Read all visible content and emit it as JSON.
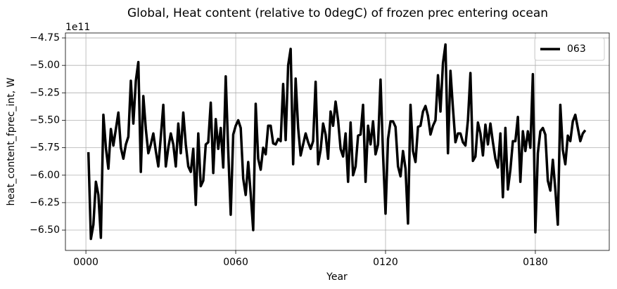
{
  "chart_data": {
    "type": "line",
    "title": "Global, Heat content (relative to 0degC) of frozen prec entering ocean",
    "xlabel": "Year",
    "ylabel": "heat_content_fprec_int, W",
    "offset_text": "1e11",
    "x": [
      1,
      2,
      3,
      4,
      5,
      6,
      7,
      8,
      9,
      10,
      11,
      12,
      13,
      14,
      15,
      16,
      17,
      18,
      19,
      20,
      21,
      22,
      23,
      24,
      25,
      26,
      27,
      28,
      29,
      30,
      31,
      32,
      33,
      34,
      35,
      36,
      37,
      38,
      39,
      40,
      41,
      42,
      43,
      44,
      45,
      46,
      47,
      48,
      49,
      50,
      51,
      52,
      53,
      54,
      55,
      56,
      57,
      58,
      59,
      60,
      61,
      62,
      63,
      64,
      65,
      66,
      67,
      68,
      69,
      70,
      71,
      72,
      73,
      74,
      75,
      76,
      77,
      78,
      79,
      80,
      81,
      82,
      83,
      84,
      85,
      86,
      87,
      88,
      89,
      90,
      91,
      92,
      93,
      94,
      95,
      96,
      97,
      98,
      99,
      100,
      101,
      102,
      103,
      104,
      105,
      106,
      107,
      108,
      109,
      110,
      111,
      112,
      113,
      114,
      115,
      116,
      117,
      118,
      119,
      120,
      121,
      122,
      123,
      124,
      125,
      126,
      127,
      128,
      129,
      130,
      131,
      132,
      133,
      134,
      135,
      136,
      137,
      138,
      139,
      140,
      141,
      142,
      143,
      144,
      145,
      146,
      147,
      148,
      149,
      150,
      151,
      152,
      153,
      154,
      155,
      156,
      157,
      158,
      159,
      160,
      161,
      162,
      163,
      164,
      165,
      166,
      167,
      168,
      169,
      170,
      171,
      172,
      173,
      174,
      175,
      176,
      177,
      178,
      179,
      180,
      181,
      182,
      183,
      184,
      185,
      186,
      187,
      188,
      189,
      190,
      191,
      192,
      193,
      194,
      195,
      196,
      197,
      198,
      199,
      200
    ],
    "series": [
      {
        "name": "063",
        "color": "#000000",
        "values": [
          -5.79,
          -6.58,
          -6.45,
          -6.06,
          -6.18,
          -6.57,
          -5.45,
          -5.75,
          -5.94,
          -5.58,
          -5.73,
          -5.58,
          -5.43,
          -5.75,
          -5.85,
          -5.72,
          -5.65,
          -5.14,
          -5.53,
          -5.14,
          -4.97,
          -5.97,
          -5.28,
          -5.58,
          -5.8,
          -5.72,
          -5.62,
          -5.78,
          -5.92,
          -5.65,
          -5.36,
          -5.92,
          -5.75,
          -5.62,
          -5.72,
          -5.92,
          -5.53,
          -5.8,
          -5.43,
          -5.72,
          -5.92,
          -5.97,
          -5.76,
          -6.27,
          -5.62,
          -6.1,
          -6.05,
          -5.72,
          -5.7,
          -5.34,
          -5.98,
          -5.49,
          -5.76,
          -5.57,
          -5.93,
          -5.1,
          -5.78,
          -6.36,
          -5.63,
          -5.55,
          -5.5,
          -5.57,
          -6.03,
          -6.18,
          -5.88,
          -6.17,
          -6.5,
          -5.35,
          -5.85,
          -5.95,
          -5.75,
          -5.81,
          -5.55,
          -5.55,
          -5.71,
          -5.72,
          -5.67,
          -5.69,
          -5.17,
          -5.68,
          -5.0,
          -4.85,
          -5.9,
          -5.12,
          -5.57,
          -5.82,
          -5.72,
          -5.62,
          -5.7,
          -5.76,
          -5.69,
          -5.15,
          -5.9,
          -5.77,
          -5.53,
          -5.63,
          -5.85,
          -5.42,
          -5.55,
          -5.33,
          -5.5,
          -5.76,
          -5.83,
          -5.62,
          -6.06,
          -5.52,
          -6.0,
          -5.92,
          -5.64,
          -5.63,
          -5.36,
          -6.06,
          -5.55,
          -5.72,
          -5.51,
          -5.81,
          -5.72,
          -5.13,
          -5.81,
          -6.35,
          -5.67,
          -5.51,
          -5.51,
          -5.56,
          -5.92,
          -6.01,
          -5.78,
          -5.94,
          -6.44,
          -5.36,
          -5.78,
          -5.88,
          -5.56,
          -5.55,
          -5.42,
          -5.37,
          -5.46,
          -5.63,
          -5.55,
          -5.5,
          -5.09,
          -5.42,
          -4.98,
          -4.81,
          -5.8,
          -5.05,
          -5.39,
          -5.7,
          -5.62,
          -5.62,
          -5.7,
          -5.73,
          -5.5,
          -5.07,
          -5.87,
          -5.83,
          -5.52,
          -5.62,
          -5.82,
          -5.54,
          -5.72,
          -5.53,
          -5.7,
          -5.85,
          -5.93,
          -5.62,
          -6.2,
          -5.57,
          -6.13,
          -5.95,
          -5.69,
          -5.69,
          -5.47,
          -6.06,
          -5.6,
          -5.78,
          -5.6,
          -5.75,
          -5.08,
          -6.52,
          -5.8,
          -5.6,
          -5.57,
          -5.63,
          -6.05,
          -6.14,
          -5.86,
          -6.13,
          -6.45,
          -5.36,
          -5.77,
          -5.9,
          -5.64,
          -5.69,
          -5.51,
          -5.45,
          -5.57,
          -5.69,
          -5.62,
          -5.59
        ]
      }
    ],
    "xlim": [
      -8.2,
      209.6
    ],
    "ylim": [
      -6.685,
      -4.705
    ],
    "xticks": [
      {
        "value": 0,
        "label": "0000"
      },
      {
        "value": 60,
        "label": "0060"
      },
      {
        "value": 120,
        "label": "0120"
      },
      {
        "value": 180,
        "label": "0180"
      }
    ],
    "yticks": [
      {
        "value": -6.5,
        "label": "−6.50"
      },
      {
        "value": -6.25,
        "label": "−6.25"
      },
      {
        "value": -6.0,
        "label": "−6.00"
      },
      {
        "value": -5.75,
        "label": "−5.75"
      },
      {
        "value": -5.5,
        "label": "−5.50"
      },
      {
        "value": -5.25,
        "label": "−5.25"
      },
      {
        "value": -5.0,
        "label": "−5.00"
      },
      {
        "value": -4.75,
        "label": "−4.75"
      }
    ],
    "grid": true,
    "legend": "upper right"
  }
}
